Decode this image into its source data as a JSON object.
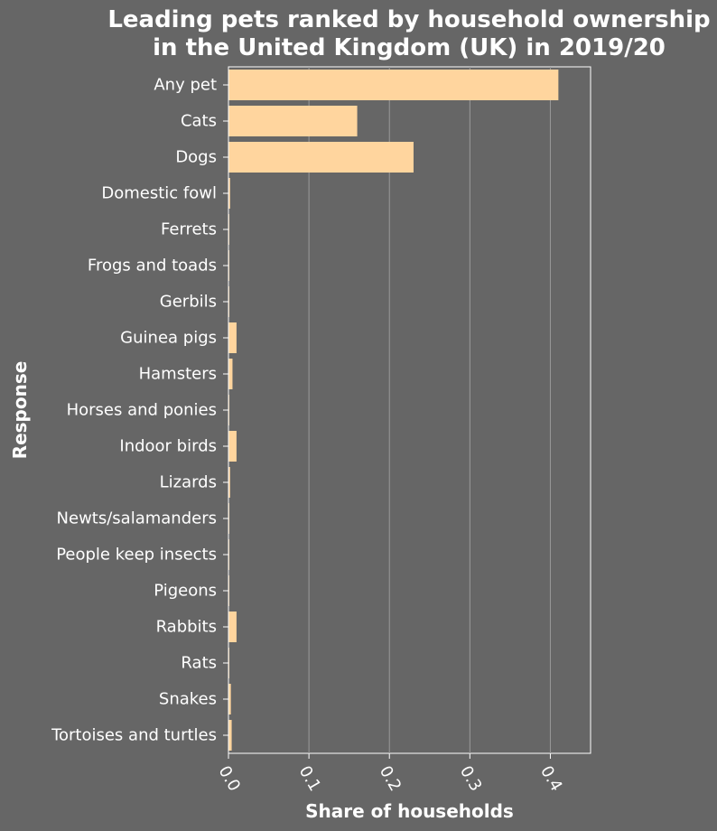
{
  "chart_data": {
    "type": "bar",
    "orientation": "horizontal",
    "title": "Leading pets ranked by household ownership in the United Kingdom (UK) in 2019/20",
    "title_lines": [
      "Leading pets ranked by household ownership",
      "in the United Kingdom (UK) in 2019/20"
    ],
    "xlabel": "Share of households",
    "ylabel": "Response",
    "xlim": [
      0,
      0.45
    ],
    "xticks": [
      0.0,
      0.1,
      0.2,
      0.3,
      0.4
    ],
    "xtick_labels": [
      "0.0",
      "0.1",
      "0.2",
      "0.3",
      "0.4"
    ],
    "grid": true,
    "categories": [
      "Any pet",
      "Cats",
      "Dogs",
      "Domestic fowl",
      "Ferrets",
      "Frogs and toads",
      "Gerbils",
      "Guinea pigs",
      "Hamsters",
      "Horses and ponies",
      "Indoor birds",
      "Lizards",
      "Newts/salamanders",
      "People keep insects",
      "Pigeons",
      "Rabbits",
      "Rats",
      "Snakes",
      "Tortoises and turtles"
    ],
    "values": [
      0.41,
      0.16,
      0.23,
      0.002,
      0.001,
      0.001,
      0.001,
      0.01,
      0.005,
      0.001,
      0.01,
      0.002,
      0.001,
      0.001,
      0.001,
      0.01,
      0.001,
      0.003,
      0.004
    ],
    "colors": {
      "background": "#666666",
      "bar": "#ffd59e",
      "grid": "#9a9a9a",
      "axis": "#ffffff",
      "text": "#ffffff"
    }
  }
}
